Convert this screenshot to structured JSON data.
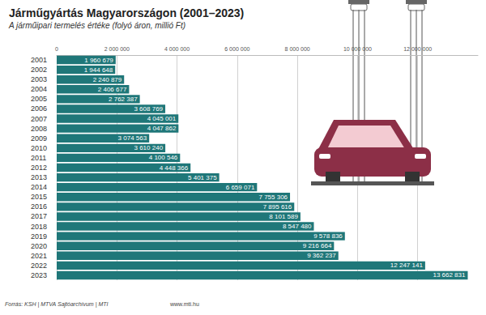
{
  "chart_data": {
    "type": "bar",
    "orientation": "horizontal",
    "title": "Járműgyártás Magyarországon (2001–2023)",
    "subtitle": "A járműipari termelés értéke (folyó áron, millió Ft)",
    "annotations": [
      "Forrás: KSH | MTVA Sajtóarchívum | MTI",
      "www.mti.hu"
    ],
    "categories": [
      "2001",
      "2002",
      "2003",
      "2004",
      "2005",
      "2006",
      "2007",
      "2008",
      "2009",
      "2010",
      "2011",
      "2012",
      "2013",
      "2014",
      "2015",
      "2016",
      "2017",
      "2018",
      "2019",
      "2020",
      "2021",
      "2022",
      "2023"
    ],
    "values": [
      1960679,
      1944648,
      2240879,
      2406677,
      2762387,
      3608769,
      4045001,
      4047862,
      3074563,
      3610240,
      4100546,
      4448366,
      5401375,
      6659071,
      7755306,
      7895616,
      8101589,
      8547480,
      9578836,
      9216664,
      9362237,
      12247141,
      13662831
    ],
    "value_labels": [
      "1 960 679",
      "1 944 648",
      "2 240 879",
      "2 406 677",
      "2 762 387",
      "3 608 769",
      "4 045 001",
      "4 047 862",
      "3 074 563",
      "3 610 240",
      "4 100 546",
      "4 448 366",
      "5 401 375",
      "6 659 071",
      "7 755 306",
      "7 895 616",
      "8 101 589",
      "8 547 480",
      "9 578 836",
      "9 216 664",
      "9 362 237",
      "12 247 141",
      "13 662 831"
    ],
    "data_labels": true,
    "color": "#1f7779",
    "xlim": [
      0,
      14000000
    ],
    "xticks": [
      0,
      {
        "value": 2000000,
        "label": "2 000 000"
      },
      {
        "value": 4000000,
        "label": "4 000 000"
      },
      {
        "value": 6000000,
        "label": "6 000 000"
      },
      {
        "value": 8000000,
        "label": "8 000 000"
      },
      {
        "value": 10000000,
        "label": "10 000 000"
      },
      {
        "value": 12000000,
        "label": "12 000 000"
      }
    ],
    "grid": true
  }
}
